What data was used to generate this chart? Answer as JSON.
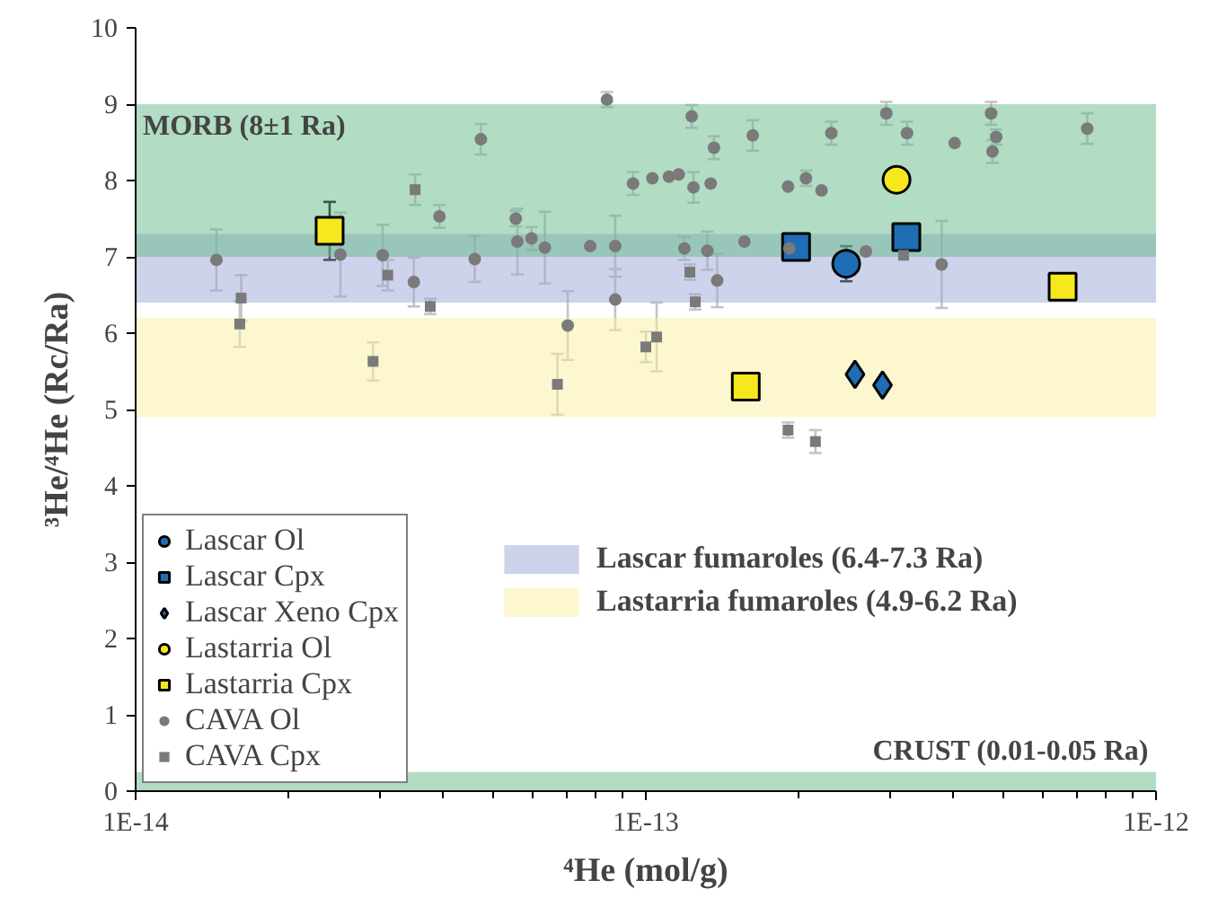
{
  "chart_data": {
    "type": "scatter",
    "xlabel": "⁴He (mol/g)",
    "ylabel": "³He/⁴He (Rc/Ra)",
    "log": "x",
    "grid": false,
    "legend": "bottom left",
    "xlim": [
      1e-14,
      1e-12
    ],
    "ylim": [
      0,
      10
    ],
    "xticks": [
      {
        "value": 1e-14,
        "label": "1E-14"
      },
      {
        "value": 1e-13,
        "label": "1E-13"
      },
      {
        "value": 1e-12,
        "label": "1E-12"
      }
    ],
    "yticks": [
      0,
      1,
      2,
      3,
      4,
      5,
      6,
      7,
      8,
      9,
      10
    ],
    "bands": [
      {
        "axis": "y",
        "from": 6.4,
        "to": 7.3,
        "label": "Lascar fumaroles (6.4-7.3 Ra)",
        "color": "#9ba7d5"
      },
      {
        "axis": "y",
        "from": 4.9,
        "to": 6.2,
        "label": "Lastarria fumaroles (4.9-6.2 Ra)",
        "color": "#fbefa0"
      },
      {
        "axis": "y",
        "from": 7,
        "to": 9,
        "label": "MORB (8±1 Ra)",
        "color": "#66b98a"
      },
      {
        "axis": "y",
        "from": 0,
        "to": 0.25,
        "label": "CRUST (0.01-0.05 Ra)",
        "color": "#66b98a"
      }
    ],
    "series": [
      {
        "name": "Lascar Ol",
        "color": "#1f6db5",
        "marker": "circle",
        "x": [
          2.47e-13
        ],
        "values": [
          6.91
        ],
        "errors": [
          0.23
        ]
      },
      {
        "name": "Lascar Cpx",
        "color": "#1f6db5",
        "marker": "square",
        "x": [
          1.97e-13,
          3.24e-13
        ],
        "values": [
          7.13,
          7.26
        ]
      },
      {
        "name": "Lascar Xeno Cpx",
        "color": "#1f6db5",
        "marker": "diamond",
        "x": [
          2.57e-13,
          2.91e-13
        ],
        "values": [
          5.46,
          5.32
        ]
      },
      {
        "name": "Lastarria Ol",
        "color": "#f7e81e",
        "marker": "circle",
        "x": [
          3.1e-13
        ],
        "values": [
          8.01
        ]
      },
      {
        "name": "Lastarria Cpx",
        "color": "#f7e81e",
        "marker": "square",
        "x": [
          2.4e-14,
          1.57e-13,
          6.56e-13
        ],
        "values": [
          7.34,
          5.3,
          6.61
        ],
        "errors": [
          0.38,
          null,
          null
        ]
      },
      {
        "name": "CAVA Ol",
        "color": "#7a7a7a",
        "marker": "circle",
        "x": [
          1.44e-14,
          4.75e-14,
          3.94e-14,
          2.52e-14,
          3.05e-14,
          3.51e-14,
          4.62e-14,
          8.39e-14,
          1.23e-13,
          1.36e-13,
          1.62e-13,
          2.31e-13,
          9.44e-14,
          1.03e-13,
          1.11e-13,
          1.16e-13,
          1.24e-13,
          1.34e-13,
          1.9e-13,
          2.06e-13,
          2.21e-13,
          5.56e-14,
          5.6e-14,
          5.97e-14,
          6.34e-14,
          7.78e-14,
          8.71e-14,
          1.19e-13,
          1.32e-13,
          1.56e-13,
          1.91e-13,
          1.38e-13,
          8.71e-14,
          7.03e-14,
          2.96e-13,
          3.25e-13,
          4.03e-13,
          4.75e-13,
          4.86e-13,
          4.78e-13,
          7.33e-13,
          2.7e-13,
          3.8e-13
        ],
        "values": [
          6.96,
          8.54,
          7.53,
          7.03,
          7.02,
          6.67,
          6.97,
          9.06,
          8.84,
          8.43,
          8.59,
          8.62,
          7.96,
          8.03,
          8.05,
          8.08,
          7.91,
          7.96,
          7.92,
          8.03,
          7.87,
          7.5,
          7.2,
          7.24,
          7.12,
          7.14,
          7.14,
          7.11,
          7.08,
          7.2,
          7.11,
          6.69,
          6.44,
          6.1,
          8.88,
          8.62,
          8.49,
          8.88,
          8.57,
          8.38,
          8.68,
          7.07,
          6.9
        ],
        "errors": [
          0.4,
          0.2,
          0.15,
          0.55,
          0.4,
          0.32,
          0.3,
          0.1,
          0.15,
          0.15,
          0.2,
          0.15,
          0.15,
          null,
          null,
          null,
          0.2,
          null,
          null,
          0.1,
          null,
          0.1,
          0.43,
          0.15,
          0.47,
          null,
          0.4,
          0.15,
          0.25,
          null,
          0.15,
          0.35,
          0.4,
          0.45,
          0.15,
          0.15,
          null,
          0.15,
          0.1,
          0.15,
          0.2,
          null,
          0.57
        ]
      },
      {
        "name": "CAVA Cpx",
        "color": "#7a7a7a",
        "marker": "square",
        "x": [
          3.53e-14,
          1.61e-14,
          1.6e-14,
          3.12e-14,
          3.78e-14,
          2.92e-14,
          1.22e-13,
          1.25e-13,
          1e-13,
          1.05e-13,
          6.71e-14,
          1.9e-13,
          2.15e-13,
          3.2e-13
        ],
        "values": [
          7.88,
          6.46,
          6.12,
          6.76,
          6.35,
          5.63,
          6.8,
          6.41,
          5.82,
          5.95,
          5.33,
          4.73,
          4.58,
          7.02
        ],
        "errors": [
          0.2,
          0.3,
          0.3,
          0.2,
          0.1,
          0.25,
          0.1,
          0.1,
          0.2,
          0.45,
          0.4,
          0.1,
          0.15,
          null
        ]
      }
    ]
  }
}
